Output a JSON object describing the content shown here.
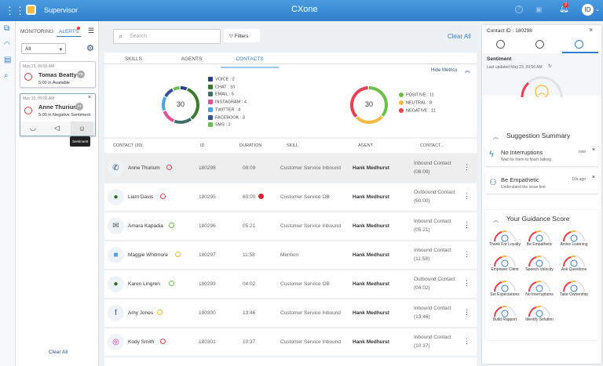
{
  "header": {
    "app_title": "Supervisor",
    "brand": "CXone",
    "notification_count": "2",
    "user_initials": "ID"
  },
  "alerts_panel": {
    "tabs": [
      "MONITORING",
      "ALERTS"
    ],
    "filter_value": "All",
    "clear_all": "Clear All",
    "cards": [
      {
        "time": "May 23, 09:56 AM",
        "name": "Tomas Beatty",
        "initials": "TB",
        "status": "5:00 in Available"
      },
      {
        "time": "May 23, 09:56 AM",
        "name": "Anne Thurium",
        "initials": "AT",
        "status": "5:00 in Negative Sentiment"
      }
    ],
    "tooltip": "Sentiment"
  },
  "main": {
    "search_placeholder": "Search",
    "filters": "Filters",
    "clear_all": "Clear All",
    "tabs": [
      "SKILLS",
      "AGENTS",
      "CONTACTS"
    ],
    "hide_metrics": "Hide Metrics",
    "channel_total": "30",
    "sentiment_total": "30",
    "channels": [
      {
        "label": "VOICE : 2",
        "value": 2,
        "color": "#2c3e8f"
      },
      {
        "label": "CHAT : 10",
        "value": 10,
        "color": "#3c7a2e"
      },
      {
        "label": "EMAIL : 5",
        "value": 5,
        "color": "#3f6e66"
      },
      {
        "label": "INSTAGRAM : 4",
        "value": 4,
        "color": "#e04f9a"
      },
      {
        "label": "TWITTER : 4",
        "value": 4,
        "color": "#4ea3e8"
      },
      {
        "label": "FACEBOOK : 3",
        "value": 3,
        "color": "#34519a"
      },
      {
        "label": "SMS : 2",
        "value": 2,
        "color": "#6ac04f"
      }
    ],
    "sentiments": [
      {
        "label": "POSITIVE : 11",
        "value": 11,
        "color": "#6cc04a"
      },
      {
        "label": "NEUTRAL : 8",
        "value": 8,
        "color": "#f4b942"
      },
      {
        "label": "NEGATIVE : 11",
        "value": 11,
        "color": "#e8404f"
      }
    ],
    "columns": [
      "CONTACT (30)",
      "ID",
      "DURATION",
      "SKILL",
      "AGENT",
      "CONTACT..."
    ],
    "rows": [
      {
        "channel": "voice",
        "name": "Anne Thurium",
        "sentiment": "negative",
        "id": "180298",
        "duration": "08:09",
        "skill": "Customer Service Inbound",
        "agent": "Hank Medhurst",
        "contact": "Inbound Contact",
        "contact_time": "(08:09)"
      },
      {
        "channel": "chat",
        "name": "Liam Davis",
        "sentiment": "negative",
        "id": "180295",
        "duration": "60:00",
        "skill": "Customer Service OB",
        "agent": "Hank Medhurst",
        "contact": "Outbound Contact",
        "contact_time": "(60:00)",
        "alert": true
      },
      {
        "channel": "email",
        "name": "Amara Kapadia",
        "sentiment": "positive",
        "id": "180296",
        "duration": "05:21",
        "skill": "Customer Service Inbound",
        "agent": "Hank Medhurst",
        "contact": "Inbound Contact",
        "contact_time": "(05:21)"
      },
      {
        "channel": "twitter",
        "name": "Maggie Whitmore",
        "sentiment": "neutral",
        "id": "180297",
        "duration": "11:58",
        "skill": "Mention",
        "agent": "Hank Medhurst",
        "contact": "Inbound Contact",
        "contact_time": "(11:58)"
      },
      {
        "channel": "chat",
        "name": "Karen Lingren",
        "sentiment": "positive",
        "id": "180299",
        "duration": "04:02",
        "skill": "Customer Service OB",
        "agent": "Hank Medhurst",
        "contact": "Outbound Contact",
        "contact_time": "(04:02)"
      },
      {
        "channel": "facebook",
        "name": "Amy Jones",
        "sentiment": "neutral",
        "id": "180300",
        "duration": "13:46",
        "skill": "Customer Service Inbound",
        "agent": "Hank Medhurst",
        "contact": "Inbound Contact",
        "contact_time": "(13:46)"
      },
      {
        "channel": "instagram",
        "name": "Kody Smith",
        "sentiment": "negative",
        "id": "180301",
        "duration": "10:37",
        "skill": "Customer Service Inbound",
        "agent": "Hank Medhurst",
        "contact": "Inbound Contact",
        "contact_time": "(10:37)"
      }
    ]
  },
  "right_panel": {
    "contact_id": "Contact ID : 180298",
    "sentiment_title": "Sentiment",
    "last_updated": "Last updated May 23, 09:56 AM",
    "sentiment_level": "negative",
    "suggestion_title": "Suggestion Summary",
    "suggestions": [
      {
        "title": "No Interruptions",
        "subtitle": "Wait for them to finish talking",
        "time": "now",
        "icon": "lightning-icon"
      },
      {
        "title": "Be Empathetic",
        "subtitle": "Understand the issue first",
        "time": "10s ago",
        "icon": "person-check-icon"
      }
    ],
    "guidance_title": "Your Guidance Score",
    "scores": [
      "Thank For Loyalty",
      "Be Empathetic",
      "Active Listening",
      "Empower Client",
      "Speech Velocity",
      "Ask Questions",
      "Set Expectations",
      "No Interruptions",
      "Take Ownership",
      "Build Rapport",
      "Identify Solution"
    ]
  },
  "colors": {
    "header": "#3a8ad6",
    "accent": "#2f7fcc",
    "negative": "#e8404f",
    "neutral": "#f4b942",
    "positive": "#6cc04a"
  }
}
